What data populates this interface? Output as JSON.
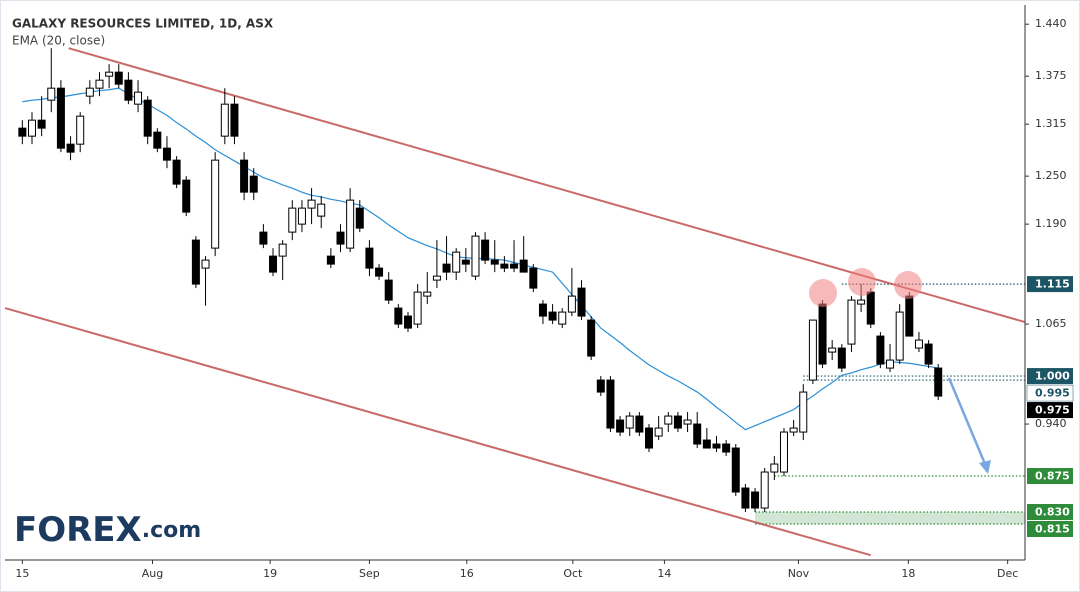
{
  "chart_data": {
    "type": "candlestick",
    "title": "GALAXY RESOURCES LIMITED, 1D, ASX",
    "subtitle": "EMA (20, close)",
    "logo": {
      "brand": "FOREX",
      "suffix": ".com"
    },
    "up_color": "#ffffff",
    "down_color": "#000000",
    "xlim": [
      -1.8,
      104
    ],
    "ylim": [
      0.77,
      1.464
    ],
    "xticks": [
      {
        "value": 0,
        "label": "15"
      },
      {
        "value": 13.5,
        "label": "Aug"
      },
      {
        "value": 25.7,
        "label": "19"
      },
      {
        "value": 36,
        "label": "Sep"
      },
      {
        "value": 46.1,
        "label": "16"
      },
      {
        "value": 57.1,
        "label": "Oct"
      },
      {
        "value": 66.6,
        "label": "14"
      },
      {
        "value": 80.5,
        "label": "Nov"
      },
      {
        "value": 91.9,
        "label": "18"
      },
      {
        "value": 102.2,
        "label": "Dec"
      }
    ],
    "yticks": [
      {
        "value": 1.44,
        "label": "1.440"
      },
      1.375,
      1.315,
      {
        "value": 1.25,
        "label": "1.250"
      },
      {
        "value": 1.19,
        "label": "1.190"
      },
      1.065,
      {
        "value": 0.94,
        "label": "0.940"
      }
    ],
    "open": [
      1.31,
      1.3,
      1.32,
      1.345,
      1.36,
      1.29,
      1.29,
      1.35,
      1.36,
      1.375,
      1.38,
      1.37,
      1.34,
      1.345,
      1.305,
      1.285,
      1.27,
      1.245,
      1.17,
      1.135,
      1.16,
      1.3,
      1.34,
      1.27,
      1.25,
      1.18,
      1.15,
      1.15,
      1.18,
      1.19,
      1.21,
      1.2,
      1.15,
      1.18,
      1.16,
      1.21,
      1.16,
      1.135,
      1.12,
      1.085,
      1.075,
      1.065,
      1.1,
      1.12,
      1.14,
      1.13,
      1.145,
      1.125,
      1.17,
      1.145,
      1.14,
      1.14,
      1.145,
      1.135,
      1.09,
      1.08,
      1.065,
      1.08,
      1.11,
      1.07,
      0.995,
      0.995,
      0.945,
      0.935,
      0.95,
      0.935,
      0.925,
      0.94,
      0.95,
      0.94,
      0.94,
      0.92,
      0.915,
      0.915,
      0.91,
      0.86,
      0.855,
      0.835,
      0.88,
      0.88,
      0.93,
      0.93,
      0.995,
      1.09,
      1.03,
      1.035,
      1.04,
      1.09,
      1.105,
      1.05,
      1.01,
      1.02,
      1.1,
      1.035,
      1.04,
      1.01
    ],
    "high": [
      1.32,
      1.33,
      1.35,
      1.41,
      1.37,
      1.3,
      1.33,
      1.37,
      1.38,
      1.39,
      1.39,
      1.38,
      1.37,
      1.35,
      1.31,
      1.3,
      1.275,
      1.25,
      1.175,
      1.15,
      1.28,
      1.36,
      1.35,
      1.28,
      1.26,
      1.19,
      1.16,
      1.17,
      1.22,
      1.22,
      1.235,
      1.225,
      1.16,
      1.19,
      1.235,
      1.22,
      1.17,
      1.14,
      1.13,
      1.09,
      1.08,
      1.115,
      1.13,
      1.17,
      1.175,
      1.16,
      1.16,
      1.18,
      1.18,
      1.17,
      1.15,
      1.17,
      1.175,
      1.14,
      1.095,
      1.09,
      1.085,
      1.135,
      1.12,
      1.075,
      1.0,
      1.0,
      0.95,
      0.955,
      0.955,
      0.94,
      0.95,
      0.955,
      0.955,
      0.955,
      0.955,
      0.935,
      0.925,
      0.92,
      0.915,
      0.865,
      0.86,
      0.885,
      0.9,
      0.935,
      0.945,
      0.99,
      1.07,
      1.095,
      1.045,
      1.04,
      1.1,
      1.115,
      1.11,
      1.055,
      1.04,
      1.09,
      1.105,
      1.055,
      1.045,
      1.015
    ],
    "low": [
      1.29,
      1.29,
      1.3,
      1.33,
      1.28,
      1.27,
      1.28,
      1.34,
      1.35,
      1.36,
      1.36,
      1.34,
      1.33,
      1.29,
      1.28,
      1.26,
      1.235,
      1.2,
      1.11,
      1.088,
      1.15,
      1.29,
      1.29,
      1.22,
      1.22,
      1.16,
      1.125,
      1.12,
      1.17,
      1.18,
      1.19,
      1.185,
      1.135,
      1.155,
      1.155,
      1.18,
      1.125,
      1.12,
      1.09,
      1.06,
      1.055,
      1.06,
      1.09,
      1.11,
      1.12,
      1.12,
      1.13,
      1.12,
      1.14,
      1.13,
      1.13,
      1.13,
      1.13,
      1.105,
      1.065,
      1.065,
      1.06,
      1.075,
      1.07,
      1.02,
      0.975,
      0.93,
      0.925,
      0.925,
      0.925,
      0.905,
      0.92,
      0.93,
      0.93,
      0.93,
      0.91,
      0.91,
      0.905,
      0.9,
      0.85,
      0.83,
      0.83,
      0.83,
      0.87,
      0.875,
      0.925,
      0.92,
      0.99,
      1.01,
      1.02,
      1.005,
      1.03,
      1.08,
      1.06,
      1.01,
      1.005,
      1.015,
      1.05,
      1.03,
      1.01,
      0.97
    ],
    "close": [
      1.3,
      1.32,
      1.31,
      1.36,
      1.285,
      1.28,
      1.325,
      1.36,
      1.37,
      1.38,
      1.365,
      1.345,
      1.355,
      1.3,
      1.285,
      1.27,
      1.24,
      1.205,
      1.115,
      1.145,
      1.27,
      1.34,
      1.3,
      1.23,
      1.23,
      1.165,
      1.13,
      1.165,
      1.21,
      1.21,
      1.22,
      1.215,
      1.14,
      1.165,
      1.22,
      1.185,
      1.135,
      1.125,
      1.095,
      1.065,
      1.06,
      1.105,
      1.105,
      1.125,
      1.13,
      1.155,
      1.14,
      1.175,
      1.145,
      1.14,
      1.135,
      1.135,
      1.13,
      1.11,
      1.075,
      1.07,
      1.08,
      1.1,
      1.075,
      1.025,
      0.98,
      0.935,
      0.93,
      0.95,
      0.93,
      0.91,
      0.935,
      0.95,
      0.935,
      0.945,
      0.915,
      0.91,
      0.91,
      0.905,
      0.855,
      0.835,
      0.835,
      0.88,
      0.89,
      0.93,
      0.935,
      0.98,
      1.07,
      1.015,
      1.035,
      1.01,
      1.095,
      1.095,
      1.065,
      1.015,
      1.02,
      1.08,
      1.05,
      1.045,
      1.015,
      0.975
    ],
    "ema": {
      "name": "EMA (20, close)",
      "color": "#2b8fd6",
      "values": [
        1.343,
        1.345,
        1.346,
        1.348,
        1.349,
        1.351,
        1.353,
        1.355,
        1.357,
        1.358,
        1.36,
        1.353,
        1.346,
        1.34,
        1.333,
        1.326,
        1.317,
        1.309,
        1.3,
        1.292,
        1.283,
        1.276,
        1.269,
        1.262,
        1.255,
        1.248,
        1.244,
        1.239,
        1.235,
        1.23,
        1.226,
        1.224,
        1.221,
        1.219,
        1.216,
        1.214,
        1.206,
        1.198,
        1.189,
        1.181,
        1.173,
        1.168,
        1.163,
        1.159,
        1.154,
        1.149,
        1.148,
        1.147,
        1.147,
        1.146,
        1.145,
        1.142,
        1.139,
        1.136,
        1.133,
        1.13,
        1.116,
        1.102,
        1.088,
        1.074,
        1.06,
        1.051,
        1.042,
        1.032,
        1.023,
        1.014,
        1.007,
        1.0,
        0.994,
        0.987,
        0.98,
        0.971,
        0.961,
        0.952,
        0.942,
        0.933,
        0.938,
        0.943,
        0.948,
        0.953,
        0.958,
        0.967,
        0.975,
        0.984,
        0.992,
        1.001,
        1.004,
        1.008,
        1.011,
        1.015,
        1.018,
        1.017,
        1.016,
        1.014,
        1.012,
        1.01
      ]
    },
    "trendlines": [
      {
        "color": "#c0504d",
        "x": [
          4.8,
          104
        ],
        "y": [
          1.41,
          1.0675
        ]
      },
      {
        "color": "#c0504d",
        "x": [
          -1.8,
          88
        ],
        "y": [
          1.085,
          0.776
        ]
      }
    ],
    "levels": [
      {
        "value": 1.115,
        "label": "1.115",
        "color": "#1b5566",
        "text": "#ffffff",
        "start": 85
      },
      {
        "value": 1.0,
        "label": "1.000",
        "color": "#1b5566",
        "text": "#ffffff",
        "start": 81
      },
      {
        "value": 0.995,
        "label": "0.995",
        "color": "#1b5566",
        "bg": "#ffffff",
        "text": "#1b5566",
        "start": 81
      },
      {
        "value": 0.975,
        "label": "0.975",
        "color": "#000000",
        "text": "#ffffff"
      },
      {
        "value": 0.875,
        "label": "0.875",
        "color": "#2e8b3a",
        "text": "#ffffff",
        "start": 78
      },
      {
        "value": 0.83,
        "label": "0.830",
        "color": "#2e8b3a",
        "text": "#ffffff",
        "start": 76,
        "zone": true
      },
      {
        "value": 0.815,
        "label": "0.815",
        "color": "#2e8b3a",
        "text": "#ffffff",
        "start": 76,
        "zone": true
      }
    ]
  }
}
